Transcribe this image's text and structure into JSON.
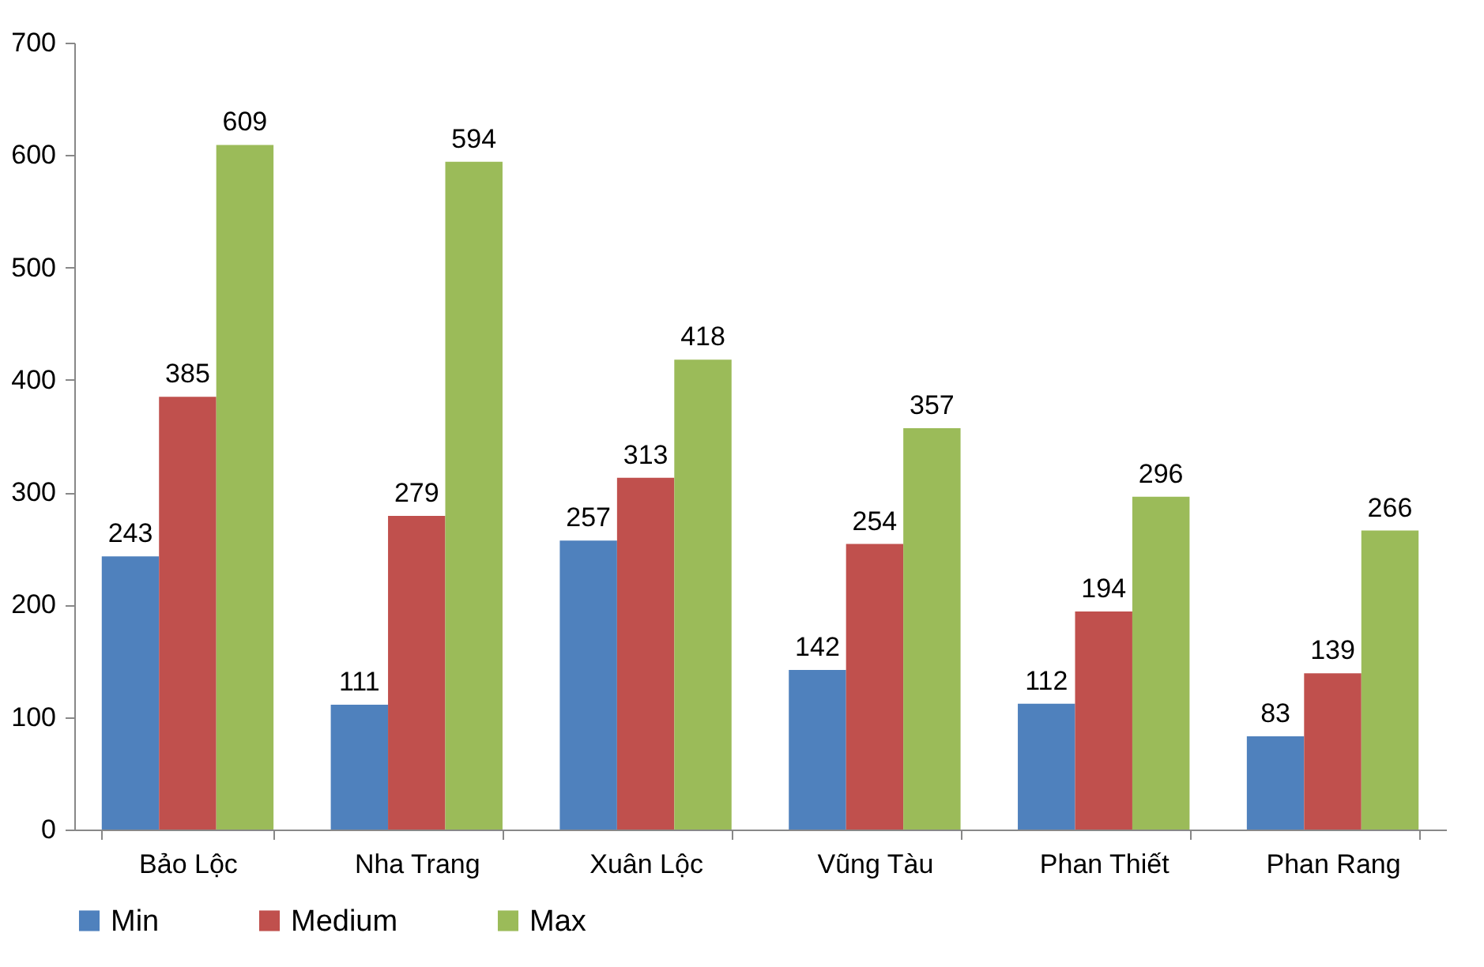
{
  "chart_data": {
    "type": "bar",
    "categories": [
      "Bảo Lộc",
      "Nha Trang",
      "Xuân Lộc",
      "Vũng Tàu",
      "Phan Thiết",
      "Phan Rang"
    ],
    "series": [
      {
        "name": "Min",
        "color": "#4f81bd",
        "values": [
          243,
          111,
          257,
          142,
          112,
          83
        ]
      },
      {
        "name": "Medium",
        "color": "#c0504d",
        "values": [
          385,
          279,
          313,
          254,
          194,
          139
        ]
      },
      {
        "name": "Max",
        "color": "#9bbb59",
        "values": [
          609,
          594,
          418,
          357,
          296,
          266
        ]
      }
    ],
    "ylim": [
      0,
      700
    ],
    "yticks": [
      0,
      100,
      200,
      300,
      400,
      500,
      600,
      700
    ],
    "grid": false,
    "legend": "bottom",
    "data_labels": true
  }
}
